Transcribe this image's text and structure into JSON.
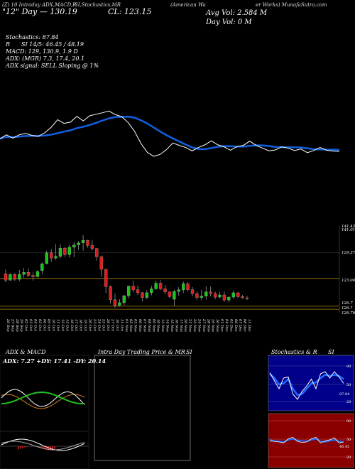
{
  "header": {
    "top_left": "(Z) 10 Intraday ADX,MACD,R",
    "top_left2": "\"12\" Day — 130.19",
    "top_mid": "SI,Stochastics,MR",
    "top_mid2": "CL: 123.15",
    "top_mid_small": "(American Wa",
    "top_right": "er Works) MunafaSutra.com",
    "avg_vol": "Avg Vol: 2.584  M",
    "day_vol": "Day Vol: 0  M"
  },
  "indicators": {
    "stochastics": "Stochastics: 87.84",
    "rsi": "SI 14/5: 46.45 / 48.19",
    "rsi_prefix": "R",
    "macd": "MACD: 129, 130.9,  1.9 D",
    "adx": "ADX:                (MGR) 7.3,  17.4,  20.1",
    "adx_signal": "ADX  signal: SELL  Sloping @ 1%"
  },
  "price_levels": [
    "141.43",
    "141.01",
    "129.37",
    "123.04",
    "126.7",
    "126.?",
    "126.76"
  ],
  "dates": [
    "26 Sep",
    "27 Sep",
    "28 Sep",
    "29 Sep",
    "02 Oct",
    "03 Oct",
    "04 Oct",
    "05 Oct",
    "06 Oct",
    "09 Oct",
    "10 Oct",
    "11 Oct",
    "12 Oct",
    "13 Oct",
    "16 Oct",
    "17 Oct",
    "18 Oct",
    "19 Oct",
    "20 Oct",
    "23 Oct",
    "24 Oct",
    "25 Oct",
    "26 Oct",
    "27 Oct",
    "30 Oct",
    "31 Oct",
    "01 Nov",
    "02 Nov",
    "03 Nov",
    "06 Nov",
    "07 Nov",
    "08 Nov",
    "09 Nov",
    "10 Nov",
    "13 Nov",
    "14 Nov",
    "15 Nov",
    "16 Nov",
    "17 Nov",
    "20 Nov",
    "21 Nov",
    "22 Nov",
    "24 Nov",
    "27 Nov",
    "28 Nov",
    "29 Nov",
    "30 Nov",
    "01 Dec",
    "04 Dec",
    "05 Dec",
    "06 Dec",
    "07 Dec",
    "08 Dec",
    "11 Dec"
  ],
  "panels": {
    "adx_macd_title": "ADX  & MACD",
    "adx_values": "ADX: 7.27  +DY: 17.41  -DY: 20.14",
    "intraday_title": "Intra  Day  Trading Price  & MR",
    "intraday_title_si": "SI",
    "stoch_title": "Stochastics & R",
    "stoch_title_si": "SI",
    "stoch_axis": [
      "80",
      "50",
      "20"
    ],
    "rsi_axis": [
      "80",
      "50",
      "20"
    ],
    "stoch_value_label": "87.84",
    "rsi_value_label": "46.45"
  },
  "colors": {
    "up": "#18c418",
    "down": "#e01818",
    "ma": "#1060e0",
    "level": "#b08010"
  },
  "chart_data": {
    "type": "candlestick",
    "candles": [
      [
        130.5,
        131.5,
        128.5,
        129.0
      ],
      [
        129.0,
        130.6,
        128.9,
        130.3
      ],
      [
        130.3,
        130.6,
        128.8,
        129.2
      ],
      [
        129.2,
        131.4,
        128.8,
        130.3
      ],
      [
        130.3,
        131.8,
        129.6,
        130.8
      ],
      [
        130.8,
        131.7,
        129.8,
        130.1
      ],
      [
        130.1,
        130.8,
        128.9,
        129.8
      ],
      [
        129.8,
        131.3,
        129.6,
        131.0
      ],
      [
        131.2,
        133.1,
        130.4,
        132.8
      ],
      [
        132.8,
        135.8,
        132.7,
        135.3
      ],
      [
        135.3,
        136.2,
        133.2,
        134.1
      ],
      [
        134.1,
        137.3,
        133.7,
        134.5
      ],
      [
        134.5,
        137.3,
        134.0,
        136.4
      ],
      [
        136.4,
        136.6,
        134.3,
        134.9
      ],
      [
        134.9,
        137.2,
        134.2,
        136.6
      ],
      [
        136.6,
        137.8,
        134.3,
        137.1
      ],
      [
        137.1,
        138.0,
        136.0,
        137.6
      ],
      [
        137.6,
        139.4,
        135.8,
        138.2
      ],
      [
        138.2,
        138.3,
        136.5,
        137.0
      ],
      [
        137.0,
        138.3,
        135.8,
        136.3
      ],
      [
        136.3,
        136.4,
        133.5,
        134.4
      ],
      [
        134.4,
        134.7,
        129.8,
        131.5
      ],
      [
        131.5,
        131.6,
        126.0,
        127.5
      ],
      [
        127.5,
        127.8,
        123.6,
        124.5
      ],
      [
        124.5,
        125.9,
        122.6,
        123.2
      ],
      [
        123.2,
        124.6,
        122.9,
        123.8
      ],
      [
        123.8,
        125.6,
        123.2,
        125.4
      ],
      [
        125.4,
        127.8,
        124.8,
        127.6
      ],
      [
        127.6,
        128.9,
        126.2,
        126.8
      ],
      [
        126.8,
        127.7,
        125.6,
        126.1
      ],
      [
        126.1,
        126.3,
        124.1,
        125.0
      ],
      [
        125.0,
        126.7,
        124.6,
        126.1
      ],
      [
        126.1,
        127.7,
        125.5,
        127.0
      ],
      [
        127.0,
        128.9,
        126.7,
        128.3
      ],
      [
        128.3,
        129.0,
        126.7,
        127.0
      ],
      [
        127.0,
        127.9,
        125.8,
        126.3
      ],
      [
        126.3,
        126.3,
        124.9,
        125.2
      ],
      [
        124.6,
        126.8,
        123.1,
        126.4
      ],
      [
        126.4,
        127.4,
        125.4,
        126.8
      ],
      [
        126.8,
        128.7,
        126.0,
        128.2
      ],
      [
        128.2,
        128.5,
        126.4,
        126.8
      ],
      [
        126.8,
        127.4,
        125.3,
        125.9
      ],
      [
        125.9,
        126.4,
        124.4,
        125.0
      ],
      [
        125.0,
        126.8,
        124.4,
        125.3
      ],
      [
        125.3,
        127.6,
        124.5,
        126.3
      ],
      [
        126.3,
        127.5,
        125.3,
        125.9
      ],
      [
        125.9,
        126.4,
        124.6,
        125.1
      ],
      [
        125.1,
        126.3,
        124.8,
        125.6
      ],
      [
        125.6,
        126.4,
        124.0,
        124.4
      ],
      [
        124.4,
        125.3,
        123.9,
        125.1
      ],
      [
        125.1,
        126.6,
        124.7,
        126.1
      ],
      [
        126.1,
        126.2,
        124.9,
        125.2
      ],
      [
        125.2,
        125.6,
        124.7,
        124.9
      ],
      [
        124.9,
        125.4,
        124.4,
        124.8
      ]
    ]
  }
}
